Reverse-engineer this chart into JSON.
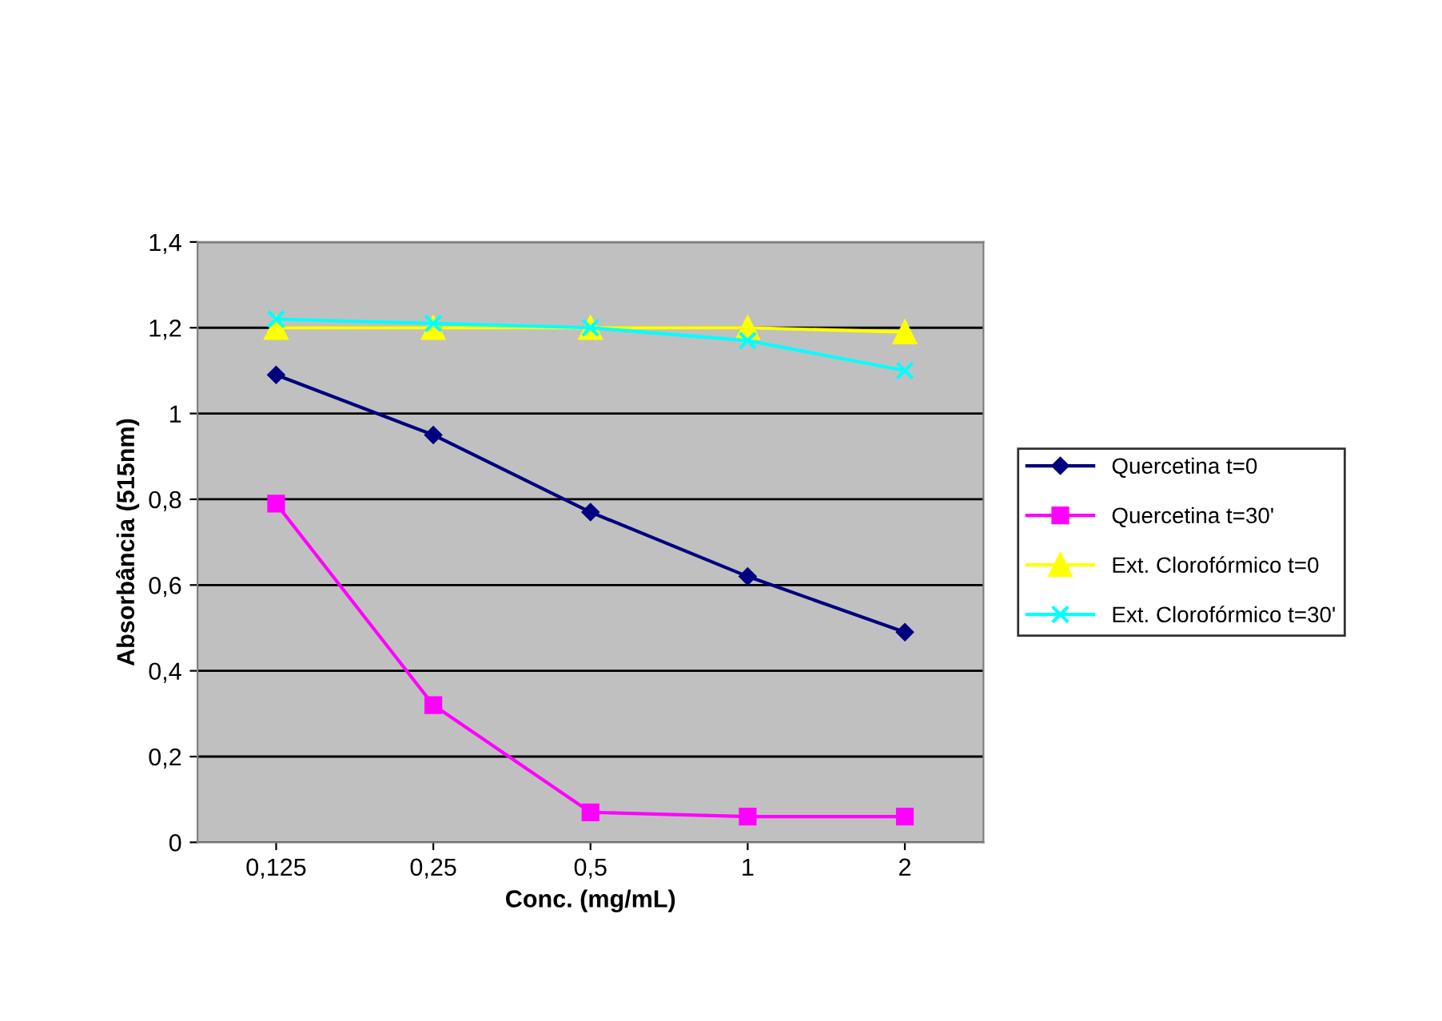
{
  "chart_data": {
    "type": "line",
    "xlabel": "Conc. (mg/mL)",
    "ylabel": "Absorbância (515nm)",
    "categories": [
      "0,125",
      "0,25",
      "0,5",
      "1",
      "2"
    ],
    "series": [
      {
        "name": "Quercetina t=0",
        "color": "#000080",
        "marker": "diamond",
        "values": [
          1.09,
          0.95,
          0.77,
          0.62,
          0.49
        ]
      },
      {
        "name": "Quercetina t=30'",
        "color": "#ff00ff",
        "marker": "square",
        "values": [
          0.79,
          0.32,
          0.07,
          0.06,
          0.06
        ]
      },
      {
        "name": "Ext. Clorofórmico t=0",
        "color": "#ffff00",
        "marker": "triangle",
        "values": [
          1.2,
          1.2,
          1.2,
          1.2,
          1.19
        ]
      },
      {
        "name": "Ext. Clorofórmico t=30'",
        "color": "#00ffff",
        "marker": "cross",
        "values": [
          1.22,
          1.21,
          1.2,
          1.17,
          1.1
        ]
      }
    ],
    "ylim": [
      0,
      1.4
    ],
    "yticks": [
      0,
      {
        "value": 0.2,
        "label": "0,2"
      },
      {
        "value": 0.4,
        "label": "0,4"
      },
      {
        "value": 0.6,
        "label": "0,6"
      },
      {
        "value": 0.8,
        "label": "0,8"
      },
      1,
      {
        "value": 1.2,
        "label": "1,2"
      },
      {
        "value": 1.4,
        "label": "1,4"
      }
    ],
    "grid": "y",
    "legend": "right",
    "line_style": "solid"
  }
}
